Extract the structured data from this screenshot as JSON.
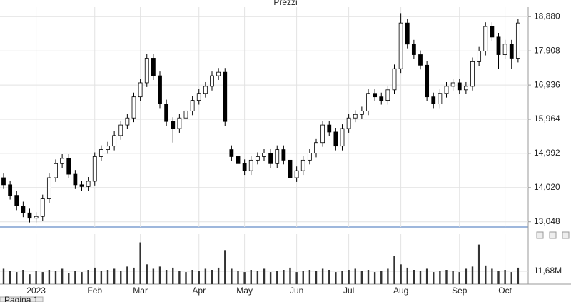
{
  "chart_data": {
    "type": "candlestick",
    "title": "Prezzi",
    "categories": [
      null,
      null,
      null,
      null,
      null,
      "2023",
      null,
      null,
      null,
      null,
      null,
      null,
      null,
      null,
      "Feb",
      null,
      null,
      null,
      null,
      null,
      null,
      "Mar",
      null,
      null,
      null,
      null,
      null,
      null,
      null,
      null,
      "Apr",
      null,
      null,
      null,
      null,
      null,
      null,
      "May",
      null,
      null,
      null,
      null,
      null,
      null,
      null,
      "Jun",
      null,
      null,
      null,
      null,
      null,
      null,
      null,
      "Jul",
      null,
      null,
      null,
      null,
      null,
      null,
      null,
      "Aug",
      null,
      null,
      null,
      null,
      null,
      null,
      null,
      null,
      "Sep",
      null,
      null,
      null,
      null,
      null,
      null,
      "Oct",
      null,
      null
    ],
    "open": [
      14300,
      14100,
      13800,
      13500,
      13300,
      13150,
      13200,
      13700,
      14300,
      14700,
      14850,
      14400,
      14100,
      14050,
      14200,
      14900,
      15100,
      15200,
      15500,
      15800,
      16000,
      16600,
      17000,
      17700,
      17200,
      16400,
      15900,
      15700,
      16000,
      16200,
      16500,
      16700,
      16900,
      17200,
      17300,
      15100,
      14900,
      14700,
      14500,
      14800,
      14900,
      15000,
      14700,
      15100,
      14800,
      14300,
      14500,
      14800,
      15000,
      15300,
      15800,
      15600,
      15200,
      15700,
      16000,
      16100,
      16200,
      16700,
      16600,
      16500,
      16800,
      17400,
      18700,
      18100,
      17800,
      17500,
      16600,
      16400,
      16700,
      16900,
      17000,
      16800,
      16900,
      17600,
      17900,
      18600,
      18300,
      17800,
      18100,
      17700
    ],
    "high": [
      14420,
      14220,
      13920,
      13620,
      13420,
      13320,
      13820,
      14420,
      14820,
      14970,
      14970,
      14520,
      14220,
      14320,
      15020,
      15220,
      15320,
      15620,
      15920,
      16120,
      16720,
      17120,
      17820,
      17820,
      17320,
      16520,
      16020,
      16120,
      16320,
      16620,
      16820,
      17020,
      17320,
      17420,
      17420,
      15220,
      15020,
      14820,
      14920,
      15020,
      15120,
      15120,
      15220,
      15220,
      14920,
      14620,
      14920,
      15120,
      15420,
      15920,
      15920,
      15720,
      15820,
      16120,
      16220,
      16320,
      16820,
      16820,
      16720,
      16920,
      17520,
      18980,
      18820,
      18220,
      17920,
      17620,
      16720,
      16820,
      17020,
      17120,
      17120,
      17020,
      17720,
      18020,
      18720,
      18720,
      18420,
      18220,
      18220,
      18820
    ],
    "low": [
      13980,
      13680,
      13380,
      13180,
      13030,
      13030,
      13080,
      13580,
      14180,
      14580,
      14280,
      13980,
      13930,
      13930,
      14080,
      14780,
      14980,
      15080,
      15380,
      15680,
      15880,
      16480,
      16880,
      17080,
      16280,
      15780,
      15300,
      15580,
      15880,
      16080,
      16380,
      16580,
      16780,
      17080,
      15780,
      14780,
      14580,
      14380,
      14380,
      14680,
      14780,
      14580,
      14580,
      14680,
      14180,
      14180,
      14380,
      14680,
      14880,
      15180,
      15480,
      15080,
      15080,
      15580,
      15880,
      15980,
      16080,
      16480,
      16380,
      16380,
      16680,
      17280,
      17980,
      17680,
      17380,
      16480,
      16280,
      16280,
      16580,
      16780,
      16680,
      16680,
      16780,
      17480,
      17780,
      18180,
      17400,
      17680,
      17400,
      17580
    ],
    "close": [
      14100,
      13800,
      13500,
      13300,
      13150,
      13200,
      13700,
      14300,
      14700,
      14850,
      14400,
      14100,
      14050,
      14200,
      14900,
      15100,
      15200,
      15500,
      15800,
      16000,
      16600,
      17000,
      17700,
      17200,
      16400,
      15900,
      15700,
      16000,
      16200,
      16500,
      16700,
      16900,
      17200,
      17300,
      15900,
      14900,
      14700,
      14500,
      14800,
      14900,
      15000,
      14700,
      15100,
      14800,
      14300,
      14500,
      14800,
      15000,
      15300,
      15800,
      15600,
      15200,
      15700,
      16000,
      16100,
      16200,
      16700,
      16600,
      16500,
      16800,
      17400,
      18700,
      18100,
      17800,
      17500,
      16600,
      16400,
      16700,
      16900,
      17000,
      16800,
      16900,
      17600,
      17900,
      18600,
      18300,
      17800,
      18100,
      17700,
      18700
    ],
    "volume": [
      14000000,
      12000000,
      11000000,
      13000000,
      9000000,
      12000000,
      11000000,
      13000000,
      12000000,
      14000000,
      10000000,
      12000000,
      11000000,
      13000000,
      15000000,
      12000000,
      13000000,
      14000000,
      12000000,
      16000000,
      15000000,
      38000000,
      18000000,
      14000000,
      16000000,
      13000000,
      15000000,
      12000000,
      11000000,
      13000000,
      12000000,
      14000000,
      13000000,
      15000000,
      31000000,
      14000000,
      12000000,
      11000000,
      13000000,
      12000000,
      14000000,
      11000000,
      12000000,
      13000000,
      15000000,
      11000000,
      12000000,
      13000000,
      12000000,
      14000000,
      13000000,
      11000000,
      12000000,
      13000000,
      14000000,
      12000000,
      13000000,
      11000000,
      12000000,
      14000000,
      26000000,
      18000000,
      15000000,
      13000000,
      12000000,
      14000000,
      11000000,
      12000000,
      13000000,
      12000000,
      11000000,
      14000000,
      16000000,
      36000000,
      17000000,
      14000000,
      12000000,
      13000000,
      11000000,
      15000000
    ],
    "ylim": [
      12900,
      19150
    ],
    "yticks": [
      {
        "value": 13048,
        "label": "13,048"
      },
      {
        "value": 14020,
        "label": "14,020"
      },
      {
        "value": 14992,
        "label": "14,992"
      },
      {
        "value": 15964,
        "label": "15,964"
      },
      {
        "value": 16936,
        "label": "16,936"
      },
      {
        "value": 17908,
        "label": "17,908"
      },
      {
        "value": 18880,
        "label": "18,880"
      }
    ],
    "y2lim": [
      0,
      39000000
    ],
    "y2ticks": [
      {
        "value": 11680000,
        "label": "11,68M"
      }
    ],
    "grid": true,
    "up_color": "#ffffff",
    "down_color": "#000000",
    "volume_color": "#333333",
    "tab": "Pagina 1"
  }
}
